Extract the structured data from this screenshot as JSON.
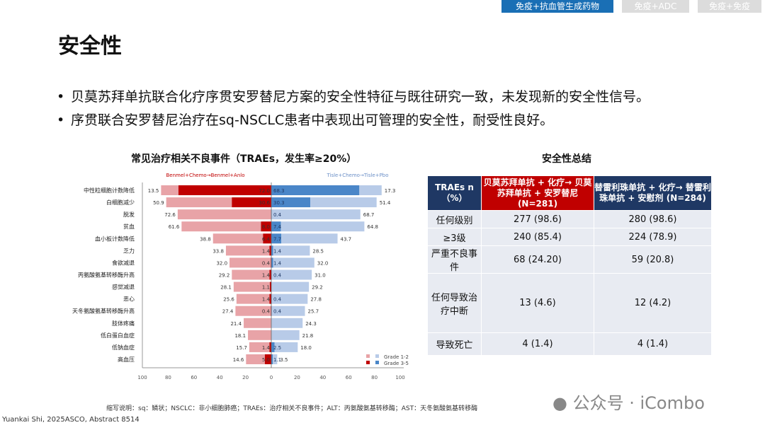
{
  "tabs": [
    "免疫+抗血管生成药物",
    "免疫+ADC",
    "免疫+免疫"
  ],
  "page_title": "安全性",
  "bullets": [
    "贝莫苏拜单抗联合化疗序贯安罗替尼方案的安全性特征与既往研究一致，未发现新的安全性信号。",
    "序贯联合安罗替尼治疗在sq-NSCLC患者中表现出可管理的安全性，耐受性良好。"
  ],
  "chart_data": {
    "type": "bar",
    "title": "常见治疗相关不良事件（TRAEs，发生率≥20%）",
    "orientation": "horizontal-butterfly",
    "left_group": "Benmel+Chemo→Benmel+Anlo",
    "right_group": "Tisle+Chemo→Tisle+Pbo",
    "categories": [
      "中性粒细胞计数降低",
      "白细胞减少",
      "脱发",
      "贫血",
      "血小板计数降低",
      "乏力",
      "食欲减退",
      "丙氨酸氨基转移酶升高",
      "感觉减退",
      "恶心",
      "天冬氨酸氨基转移酶升高",
      "肢体疼痛",
      "低白蛋白血症",
      "低钠血症",
      "高血压"
    ],
    "series": [
      {
        "name": "Grade 1-2",
        "side": "left",
        "values": [
          13.5,
          50.9,
          72.6,
          61.6,
          38.8,
          33.8,
          32.0,
          29.2,
          28.1,
          25.6,
          27.4,
          21.4,
          18.1,
          15.7,
          14.6
        ]
      },
      {
        "name": "Grade 3-5",
        "side": "left",
        "values": [
          72,
          30.6,
          0,
          8,
          6.4,
          1.4,
          0.4,
          1.4,
          1.1,
          1.4,
          0.4,
          0,
          0,
          1.4,
          5
        ]
      },
      {
        "name": "Grade 3-5",
        "side": "right",
        "values": [
          68.3,
          30.3,
          0.4,
          7.4,
          7.7,
          1.4,
          1.4,
          0.4,
          0,
          0.4,
          0.4,
          0,
          0,
          2.5,
          1.1
        ]
      },
      {
        "name": "Grade 1-2",
        "side": "right",
        "values": [
          17.3,
          51.4,
          68.7,
          64.8,
          43.7,
          28.5,
          32.0,
          31.0,
          29.2,
          27.8,
          25.7,
          24.3,
          21.8,
          18.0,
          3.5
        ]
      }
    ],
    "xticks": [
      100,
      80,
      60,
      40,
      20,
      0,
      20,
      40,
      60,
      80,
      100
    ],
    "xlim": [
      -100,
      100
    ],
    "legend": [
      "Grade 1-2",
      "Grade 3-5"
    ],
    "legend_position": "bottom-right",
    "colors": {
      "left_g12": "#e8a3a7",
      "left_g35": "#c00000",
      "right_g12": "#b8cbe8",
      "right_g35": "#4a86c8"
    }
  },
  "table": {
    "title": "安全性总结",
    "headers": [
      "TRAEs n（%）",
      "贝莫苏拜单抗 + 化疗→ 贝莫苏拜单抗 + 安罗替尼 (N=281)",
      "替雷利珠单抗 + 化疗→ 替雷利珠单抗 + 安慰剂 (N=284)"
    ],
    "rows": [
      [
        "任何级别",
        "277 (98.6)",
        "280 (98.6)"
      ],
      [
        "≥3级",
        "240 (85.4)",
        "224 (78.9)"
      ],
      [
        "严重不良事件",
        "68 (24.20)",
        "59 (20.8)"
      ],
      [
        "任何导致治疗中断",
        "13 (4.6)",
        "12 (4.2)"
      ],
      [
        "导致死亡",
        "4 (1.4)",
        "4 (1.4)"
      ]
    ]
  },
  "footnote": "缩写说明：sq：鳞状；NSCLC：非小细胞肺癌；TRAEs：治疗相关不良事件；ALT：丙氨酸氨基转移酶；AST：天冬氨酸氨基转移酶",
  "citation": "Yuankai Shi, 2025ASCO, Abstract 8514",
  "watermark": "公众号 · iCombo"
}
